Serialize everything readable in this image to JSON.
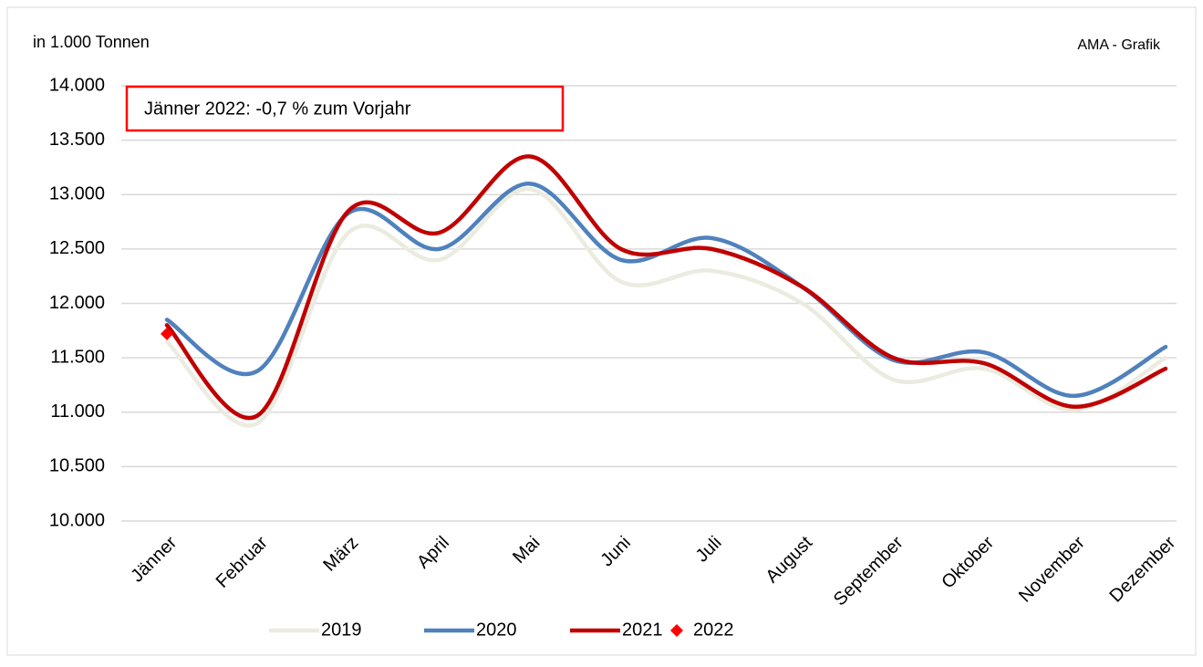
{
  "chart_data": {
    "type": "line",
    "unit_label": "in 1.000 Tonnen",
    "source": "AMA - Grafik",
    "annotation": "Jänner 2022: -0,7 % zum Vorjahr",
    "categories": [
      "Jänner",
      "Februar",
      "März",
      "April",
      "Mai",
      "Juni",
      "Juli",
      "August",
      "September",
      "Oktober",
      "November",
      "Dezember"
    ],
    "series": [
      {
        "name": "2019",
        "color": "#ecebe0",
        "values": [
          11650,
          10900,
          12650,
          12400,
          13050,
          12200,
          12300,
          12000,
          11300,
          11400,
          11020,
          11500
        ]
      },
      {
        "name": "2020",
        "color": "#4f81bd",
        "values": [
          11850,
          11380,
          12830,
          12500,
          13100,
          12400,
          12600,
          12150,
          11480,
          11550,
          11150,
          11600
        ]
      },
      {
        "name": "2021",
        "color": "#c00000",
        "values": [
          11800,
          10970,
          12850,
          12650,
          13350,
          12500,
          12500,
          12150,
          11500,
          11450,
          11050,
          11400
        ]
      },
      {
        "name": "2022",
        "color": "#ff0000",
        "marker": "diamond",
        "values": [
          11720,
          null,
          null,
          null,
          null,
          null,
          null,
          null,
          null,
          null,
          null,
          null
        ]
      }
    ],
    "ylim": [
      10000,
      14000
    ],
    "yticks": [
      {
        "value": 10000,
        "label": "10.000"
      },
      {
        "value": 10500,
        "label": "10.500"
      },
      {
        "value": 11000,
        "label": "11.000"
      },
      {
        "value": 11500,
        "label": "11.500"
      },
      {
        "value": 12000,
        "label": "12.000"
      },
      {
        "value": 12500,
        "label": "12.500"
      },
      {
        "value": 13000,
        "label": "13.000"
      },
      {
        "value": 13500,
        "label": "13.500"
      },
      {
        "value": 14000,
        "label": "14.000"
      }
    ],
    "grid": true,
    "legend": "bottom"
  }
}
